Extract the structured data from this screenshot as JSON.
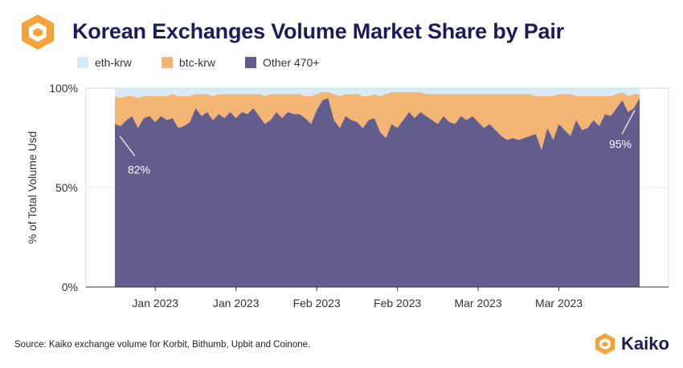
{
  "header": {
    "title": "Korean Exchanges Volume Market Share by Pair"
  },
  "legend": [
    {
      "label": "eth-krw",
      "color": "#d8ebf8"
    },
    {
      "label": "btc-krw",
      "color": "#f2b573"
    },
    {
      "label": "Other 470+",
      "color": "#625d8c"
    }
  ],
  "footer": {
    "source": "Source: Kaiko exchange volume for Korbit, Bithumb, Upbit and Coinone.",
    "brand": "Kaiko"
  },
  "colors": {
    "title": "#1e1b5c",
    "brand_orange": "#f4a43a"
  },
  "chart_data": {
    "type": "area",
    "stacked": true,
    "normalized": true,
    "ylabel": "% of Total Volume Usd",
    "y_ticks": [
      "0%",
      "50%",
      "100%"
    ],
    "ylim": [
      0,
      100
    ],
    "x_tick_labels": [
      "Jan 2023",
      "Jan 2023",
      "Feb 2023",
      "Feb 2023",
      "Mar 2023",
      "Mar 2023"
    ],
    "x_tick_dates": [
      "2023-01-15",
      "2023-01-29",
      "2023-02-12",
      "2023-02-26",
      "2023-03-12",
      "2023-03-26"
    ],
    "x": [
      "2023-01-08",
      "2023-01-09",
      "2023-01-10",
      "2023-01-11",
      "2023-01-12",
      "2023-01-13",
      "2023-01-14",
      "2023-01-15",
      "2023-01-16",
      "2023-01-17",
      "2023-01-18",
      "2023-01-19",
      "2023-01-20",
      "2023-01-21",
      "2023-01-22",
      "2023-01-23",
      "2023-01-24",
      "2023-01-25",
      "2023-01-26",
      "2023-01-27",
      "2023-01-28",
      "2023-01-29",
      "2023-01-30",
      "2023-01-31",
      "2023-02-01",
      "2023-02-02",
      "2023-02-03",
      "2023-02-04",
      "2023-02-05",
      "2023-02-06",
      "2023-02-07",
      "2023-02-08",
      "2023-02-09",
      "2023-02-10",
      "2023-02-11",
      "2023-02-12",
      "2023-02-13",
      "2023-02-14",
      "2023-02-15",
      "2023-02-16",
      "2023-02-17",
      "2023-02-18",
      "2023-02-19",
      "2023-02-20",
      "2023-02-21",
      "2023-02-22",
      "2023-02-23",
      "2023-02-24",
      "2023-02-25",
      "2023-02-26",
      "2023-02-27",
      "2023-02-28",
      "2023-03-01",
      "2023-03-02",
      "2023-03-03",
      "2023-03-04",
      "2023-03-05",
      "2023-03-06",
      "2023-03-07",
      "2023-03-08",
      "2023-03-09",
      "2023-03-10",
      "2023-03-11",
      "2023-03-12",
      "2023-03-13",
      "2023-03-14",
      "2023-03-15",
      "2023-03-16",
      "2023-03-17",
      "2023-03-18",
      "2023-03-19",
      "2023-03-20",
      "2023-03-21",
      "2023-03-22",
      "2023-03-23",
      "2023-03-24",
      "2023-03-25",
      "2023-03-26",
      "2023-03-27",
      "2023-03-28",
      "2023-03-29",
      "2023-03-30",
      "2023-03-31",
      "2023-04-01",
      "2023-04-02",
      "2023-04-03",
      "2023-04-04",
      "2023-04-05",
      "2023-04-06",
      "2023-04-07",
      "2023-04-08",
      "2023-04-09"
    ],
    "series": [
      {
        "name": "Other 470+",
        "values": [
          82,
          81,
          84,
          86,
          80,
          85,
          86,
          83,
          86,
          84,
          85,
          80,
          81,
          83,
          90,
          86,
          88,
          84,
          87,
          85,
          88,
          85,
          88,
          87,
          90,
          86,
          82,
          84,
          88,
          85,
          88,
          87,
          87,
          85,
          82,
          89,
          94,
          95,
          84,
          80,
          86,
          84,
          83,
          80,
          84,
          85,
          78,
          75,
          82,
          80,
          84,
          88,
          85,
          88,
          86,
          84,
          82,
          86,
          83,
          82,
          86,
          84,
          86,
          83,
          80,
          82,
          79,
          76,
          74,
          75,
          74,
          75,
          76,
          77,
          69,
          80,
          74,
          82,
          79,
          76,
          84,
          79,
          80,
          84,
          81,
          87,
          86,
          90,
          94,
          88,
          90,
          95
        ]
      },
      {
        "name": "btc-krw",
        "values": [
          14,
          14,
          12,
          10,
          15,
          11,
          10,
          13,
          10,
          12,
          12,
          16,
          15,
          13,
          7,
          11,
          9,
          12,
          10,
          12,
          9,
          12,
          9,
          10,
          7,
          11,
          14,
          13,
          9,
          12,
          9,
          10,
          10,
          11,
          14,
          8,
          4,
          3,
          13,
          16,
          11,
          13,
          14,
          16,
          12,
          12,
          18,
          22,
          16,
          18,
          14,
          10,
          13,
          10,
          11,
          13,
          15,
          11,
          14,
          15,
          11,
          13,
          11,
          14,
          17,
          15,
          18,
          21,
          23,
          22,
          23,
          22,
          21,
          19,
          27,
          16,
          22,
          15,
          18,
          21,
          12,
          17,
          16,
          12,
          15,
          9,
          10,
          7,
          4,
          8,
          7,
          2
        ]
      },
      {
        "name": "eth-krw",
        "values": [
          4,
          5,
          4,
          4,
          5,
          4,
          4,
          4,
          4,
          4,
          3,
          4,
          4,
          4,
          3,
          3,
          3,
          4,
          3,
          3,
          3,
          3,
          3,
          3,
          3,
          3,
          4,
          3,
          3,
          3,
          3,
          3,
          3,
          4,
          4,
          3,
          2,
          2,
          3,
          4,
          3,
          3,
          3,
          4,
          4,
          3,
          4,
          3,
          2,
          2,
          2,
          2,
          2,
          2,
          3,
          3,
          3,
          3,
          3,
          3,
          3,
          3,
          3,
          3,
          3,
          3,
          3,
          3,
          3,
          3,
          3,
          3,
          3,
          4,
          4,
          4,
          4,
          3,
          3,
          3,
          4,
          4,
          4,
          4,
          4,
          4,
          4,
          3,
          2,
          4,
          3,
          3
        ]
      }
    ],
    "annotations": [
      {
        "text": "82%",
        "date": "2023-01-08",
        "value": 82
      },
      {
        "text": "95%",
        "date": "2023-04-09",
        "value": 95
      }
    ],
    "grid": "horizontal"
  }
}
